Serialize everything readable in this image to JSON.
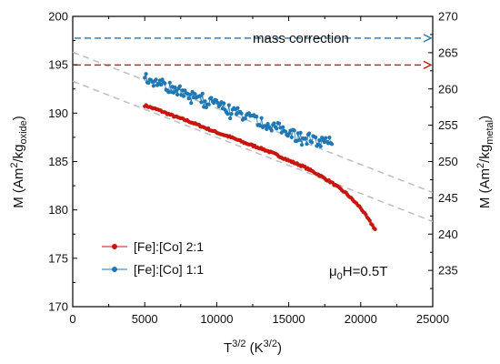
{
  "chart_data": {
    "type": "scatter",
    "xlabel": {
      "base": "T",
      "sup": "3/2",
      "unit_open": " (K",
      "unit_sup": "3/2",
      "unit_close": ")"
    },
    "ylabel_left": {
      "prefix": "M (Am",
      "sup": "2",
      "mid": "/kg",
      "sub": "oxide",
      "suffix": ")"
    },
    "ylabel_right": {
      "prefix": "M (Am",
      "sup": "2",
      "mid": "/kg",
      "sub": "metal",
      "suffix": ")"
    },
    "xlim": [
      0,
      25000
    ],
    "ylim_left": [
      170,
      200
    ],
    "ylim_right": [
      230,
      270
    ],
    "x_ticks": [
      0,
      5000,
      10000,
      15000,
      20000,
      25000
    ],
    "y_ticks_left": [
      170,
      175,
      180,
      185,
      190,
      195,
      200
    ],
    "y_ticks_right": [
      235,
      240,
      245,
      250,
      255,
      260,
      265,
      270
    ],
    "grid": false,
    "legend_position": "bottom-left",
    "annotations": {
      "mass_correction": "mass correction",
      "field": {
        "mu": "μ",
        "sub": "0",
        "rest": "H=0.5T"
      }
    },
    "series": [
      {
        "name": "[Fe]:[Co] 2:1",
        "color": "#c8170f",
        "axis": "left",
        "x_range": [
          5000,
          21000
        ],
        "fit": {
          "intercept": 193.3,
          "slope": -0.00058
        },
        "points": [
          [
            5000,
            190.8
          ],
          [
            6000,
            190.3
          ],
          [
            7000,
            189.7
          ],
          [
            8000,
            189.2
          ],
          [
            9000,
            188.6
          ],
          [
            10000,
            188.0
          ],
          [
            11000,
            187.5
          ],
          [
            12000,
            186.9
          ],
          [
            13000,
            186.4
          ],
          [
            14000,
            185.8
          ],
          [
            15000,
            185.1
          ],
          [
            16000,
            184.5
          ],
          [
            17000,
            183.7
          ],
          [
            18000,
            182.8
          ],
          [
            19000,
            181.7
          ],
          [
            20000,
            180.2
          ],
          [
            21000,
            178.0
          ]
        ]
      },
      {
        "name": "[Fe]:[Co] 1:1",
        "color": "#1f77b4",
        "axis": "left",
        "x_range": [
          5000,
          18000
        ],
        "fit": {
          "intercept": 196.3,
          "slope": -0.00058
        },
        "points": [
          [
            5000,
            193.6
          ],
          [
            5500,
            193.4
          ],
          [
            6000,
            193.1
          ],
          [
            6500,
            192.8
          ],
          [
            7000,
            192.5
          ],
          [
            8000,
            192.1
          ],
          [
            9000,
            191.5
          ],
          [
            10000,
            190.9
          ],
          [
            11000,
            190.3
          ],
          [
            12000,
            189.7
          ],
          [
            13000,
            189.1
          ],
          [
            14000,
            188.6
          ],
          [
            15000,
            188.1
          ],
          [
            16000,
            187.6
          ],
          [
            17000,
            187.1
          ],
          [
            18000,
            187.2
          ]
        ]
      }
    ],
    "reference_lines": [
      {
        "label": "mass correction",
        "color": "#1f77b4",
        "y_right": 267
      },
      {
        "color": "#c8170f",
        "y_right": 263.3
      }
    ]
  }
}
